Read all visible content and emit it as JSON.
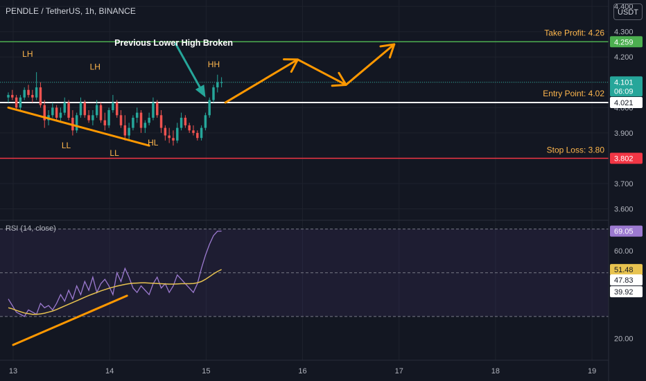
{
  "header": {
    "title": "PENDLE / TetherUS, 1h, BINANCE",
    "currency_button": "USDT"
  },
  "rsi_title": "RSI (14, close)",
  "colors": {
    "background": "#131722",
    "up": "#26a69a",
    "down": "#ef5350",
    "take_profit": "#4caf50",
    "stop_loss": "#f23645",
    "entry": "#ffffff",
    "annotation": "#ffb74d",
    "drawing": "#ff9800",
    "arrow": "#26a69a",
    "rsi_line": "#9c7ad0",
    "rsi_ma": "#e8c350"
  },
  "annotations": {
    "headline": "Previous Lower High Broken",
    "take_profit": "Take Profit: 4.26",
    "entry": "Entry Point: 4.02",
    "stop_loss": "Stop Loss: 3.80",
    "swings": [
      {
        "label": "LH",
        "t": 13.15,
        "price": 4.2
      },
      {
        "label": "LL",
        "t": 13.55,
        "price": 3.84
      },
      {
        "label": "LH",
        "t": 13.85,
        "price": 4.15
      },
      {
        "label": "LL",
        "t": 14.05,
        "price": 3.81
      },
      {
        "label": "HL",
        "t": 14.45,
        "price": 3.85
      },
      {
        "label": "HH",
        "t": 15.08,
        "price": 4.16
      }
    ]
  },
  "chart_data": [
    {
      "type": "candlestick",
      "x_axis": {
        "ticks": [
          13,
          14,
          15,
          16,
          17,
          18,
          19
        ],
        "tick_labels": [
          "13",
          "14",
          "15",
          "16",
          "17",
          "18",
          "19"
        ],
        "range": [
          12.95,
          19.1
        ]
      },
      "y_axis": {
        "ticks": [
          3.6,
          3.7,
          3.8,
          3.9,
          4.0,
          4.1,
          4.2,
          4.3,
          4.4
        ],
        "tick_labels": [
          "3.600",
          "3.700",
          "3.800",
          "3.900",
          "4.000",
          "4.100",
          "4.200",
          "4.300",
          "4.400"
        ],
        "range": [
          3.555,
          4.425
        ]
      },
      "price_badges": [
        {
          "value": "4.259",
          "kind": "take_profit"
        },
        {
          "value": "4.101",
          "countdown": "06:09",
          "kind": "last"
        },
        {
          "value": "4.021",
          "kind": "entry"
        },
        {
          "value": "3.802",
          "kind": "stop_loss"
        }
      ],
      "levels": {
        "take_profit": 4.26,
        "entry": 4.02,
        "stop_loss": 3.8
      },
      "candles": {
        "start": 12.95,
        "step": 0.0417,
        "ohlc": [
          [
            4.04,
            4.06,
            4.02,
            4.05
          ],
          [
            4.05,
            4.07,
            4.03,
            4.04
          ],
          [
            4.04,
            4.05,
            3.99,
            4.0
          ],
          [
            4.0,
            4.05,
            3.99,
            4.04
          ],
          [
            4.04,
            4.08,
            4.03,
            4.07
          ],
          [
            4.07,
            4.09,
            4.04,
            4.05
          ],
          [
            4.05,
            4.07,
            4.02,
            4.04
          ],
          [
            4.04,
            4.14,
            4.03,
            4.08
          ],
          [
            4.08,
            4.1,
            4.0,
            4.01
          ],
          [
            4.01,
            4.03,
            3.92,
            3.95
          ],
          [
            3.95,
            3.99,
            3.93,
            3.97
          ],
          [
            3.97,
            4.02,
            3.96,
            4.0
          ],
          [
            4.0,
            4.01,
            3.95,
            3.96
          ],
          [
            3.96,
            4.0,
            3.94,
            3.98
          ],
          [
            3.98,
            4.04,
            3.97,
            4.02
          ],
          [
            4.02,
            4.03,
            3.95,
            3.96
          ],
          [
            3.96,
            3.99,
            3.89,
            3.91
          ],
          [
            3.91,
            3.98,
            3.9,
            3.97
          ],
          [
            3.97,
            4.04,
            3.96,
            4.02
          ],
          [
            4.02,
            4.03,
            3.96,
            3.97
          ],
          [
            3.97,
            3.99,
            3.94,
            3.95
          ],
          [
            3.95,
            3.99,
            3.93,
            3.97
          ],
          [
            3.97,
            4.03,
            3.96,
            4.01
          ],
          [
            4.01,
            4.02,
            3.94,
            3.95
          ],
          [
            3.95,
            3.98,
            3.91,
            3.93
          ],
          [
            3.93,
            4.0,
            3.92,
            3.99
          ],
          [
            3.99,
            4.05,
            3.98,
            4.02
          ],
          [
            4.02,
            4.03,
            3.96,
            3.97
          ],
          [
            3.97,
            3.99,
            3.92,
            3.93
          ],
          [
            3.93,
            3.97,
            3.87,
            3.89
          ],
          [
            3.89,
            3.94,
            3.87,
            3.92
          ],
          [
            3.92,
            3.97,
            3.91,
            3.96
          ],
          [
            3.96,
            4.0,
            3.94,
            3.98
          ],
          [
            3.98,
            3.99,
            3.9,
            3.92
          ],
          [
            3.92,
            3.95,
            3.9,
            3.94
          ],
          [
            3.94,
            3.98,
            3.93,
            3.96
          ],
          [
            3.96,
            4.04,
            3.95,
            4.02
          ],
          [
            4.02,
            4.03,
            3.96,
            3.97
          ],
          [
            3.97,
            3.99,
            3.9,
            3.92
          ],
          [
            3.92,
            3.93,
            3.87,
            3.89
          ],
          [
            3.89,
            3.92,
            3.86,
            3.88
          ],
          [
            3.88,
            3.91,
            3.85,
            3.87
          ],
          [
            3.87,
            3.94,
            3.86,
            3.92
          ],
          [
            3.92,
            3.98,
            3.91,
            3.96
          ],
          [
            3.96,
            3.97,
            3.92,
            3.93
          ],
          [
            3.93,
            3.94,
            3.9,
            3.91
          ],
          [
            3.91,
            3.93,
            3.89,
            3.9
          ],
          [
            3.9,
            3.91,
            3.87,
            3.88
          ],
          [
            3.88,
            3.93,
            3.87,
            3.92
          ],
          [
            3.92,
            3.98,
            3.91,
            3.97
          ],
          [
            3.97,
            4.04,
            3.96,
            4.03
          ],
          [
            4.03,
            4.09,
            4.02,
            4.08
          ],
          [
            4.08,
            4.13,
            4.06,
            4.1
          ],
          [
            4.1,
            4.12,
            4.08,
            4.1
          ]
        ]
      },
      "projection_path": [
        [
          15.2,
          4.02
        ],
        [
          15.95,
          4.19
        ],
        [
          16.45,
          4.09
        ],
        [
          16.95,
          4.25
        ]
      ]
    },
    {
      "type": "line",
      "title": "RSI (14, close)",
      "y_axis": {
        "ticks": [
          20,
          60
        ],
        "tick_labels": [
          "20.00",
          "60.00"
        ],
        "range": [
          10,
          74
        ]
      },
      "bands": [
        30,
        50,
        70
      ],
      "value_badges": [
        {
          "value": "69.05",
          "kind": "rsi"
        },
        {
          "value": "51.48",
          "kind": "ma"
        },
        {
          "value": "47.83",
          "kind": "level"
        },
        {
          "value": "39.92",
          "kind": "level"
        }
      ],
      "series": [
        {
          "values": [
            38,
            35,
            32,
            31,
            30,
            33,
            32,
            31,
            36,
            34,
            35,
            33,
            36,
            40,
            37,
            42,
            38,
            44,
            40,
            46,
            42,
            48,
            41,
            45,
            47,
            44,
            40,
            50,
            46,
            52,
            48,
            43,
            41,
            44,
            42,
            40,
            45,
            48,
            43,
            45,
            41,
            44,
            49,
            47,
            45,
            43,
            41,
            45,
            52,
            58,
            63,
            67,
            69,
            69.05
          ]
        },
        {
          "values": [
            34,
            33.5,
            32.8,
            32.2,
            31.6,
            31.3,
            31,
            31,
            31.2,
            31.5,
            32,
            32.5,
            33.2,
            34,
            34.8,
            35.6,
            36.4,
            37.2,
            38,
            38.8,
            39.6,
            40.3,
            41,
            41.7,
            42.3,
            42.9,
            43.4,
            43.9,
            44.3,
            44.7,
            45,
            45.2,
            45.3,
            45.4,
            45.4,
            45.3,
            45.2,
            45.1,
            45,
            44.9,
            44.8,
            44.8,
            44.9,
            45,
            45,
            45,
            45.1,
            45.4,
            46,
            47,
            48.2,
            49.5,
            50.6,
            51.48
          ]
        }
      ],
      "trendline": [
        [
          13.0,
          17
        ],
        [
          14.18,
          39.5
        ]
      ]
    }
  ]
}
